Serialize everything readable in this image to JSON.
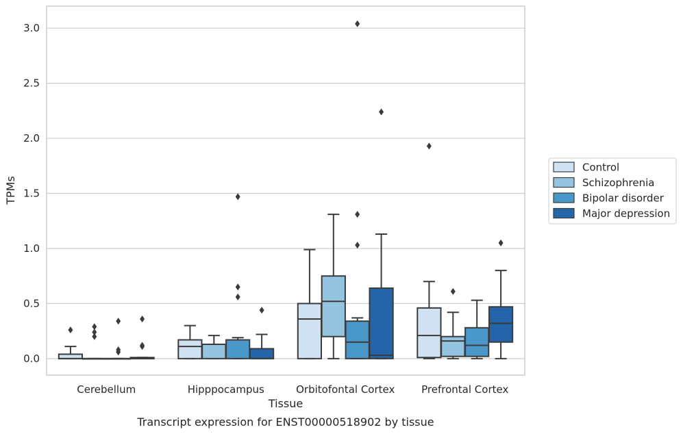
{
  "chart_data": {
    "type": "box",
    "title": "",
    "caption": "Transcript expression for ENST00000518902 by tissue",
    "xlabel": "Tissue",
    "ylabel": "TPMs",
    "ylim": [
      -0.15,
      3.2
    ],
    "yticks": [
      0.0,
      0.5,
      1.0,
      1.5,
      2.0,
      2.5,
      3.0
    ],
    "ytick_labels": [
      "0.0",
      "0.5",
      "1.0",
      "1.5",
      "2.0",
      "2.5",
      "3.0"
    ],
    "grid": "horizontal",
    "legend_position": "right",
    "categories": [
      "Cerebellum",
      "Hipppocampus",
      "Orbitofontal Cortex",
      "Prefrontal Cortex"
    ],
    "series": [
      {
        "name": "Control",
        "color": "#d0e1f2",
        "boxes": [
          {
            "whislo": 0.0,
            "q1": 0.0,
            "med": 0.0,
            "q3": 0.04,
            "whishi": 0.11,
            "fliers": [
              0.26
            ]
          },
          {
            "whislo": 0.0,
            "q1": 0.0,
            "med": 0.11,
            "q3": 0.17,
            "whishi": 0.3,
            "fliers": []
          },
          {
            "whislo": 0.0,
            "q1": 0.0,
            "med": 0.36,
            "q3": 0.5,
            "whishi": 0.99,
            "fliers": []
          },
          {
            "whislo": 0.0,
            "q1": 0.01,
            "med": 0.21,
            "q3": 0.46,
            "whishi": 0.7,
            "fliers": [
              1.93
            ]
          }
        ]
      },
      {
        "name": "Schizophrenia",
        "color": "#94c4df",
        "boxes": [
          {
            "whislo": 0.0,
            "q1": 0.0,
            "med": 0.0,
            "q3": 0.0,
            "whishi": 0.0,
            "fliers": [
              0.2,
              0.24,
              0.29
            ]
          },
          {
            "whislo": 0.0,
            "q1": 0.0,
            "med": 0.13,
            "q3": 0.13,
            "whishi": 0.21,
            "fliers": []
          },
          {
            "whislo": 0.0,
            "q1": 0.2,
            "med": 0.52,
            "q3": 0.75,
            "whishi": 1.31,
            "fliers": []
          },
          {
            "whislo": 0.0,
            "q1": 0.02,
            "med": 0.16,
            "q3": 0.2,
            "whishi": 0.42,
            "fliers": [
              0.61
            ]
          }
        ]
      },
      {
        "name": "Bipolar disorder",
        "color": "#4a98c9",
        "boxes": [
          {
            "whislo": 0.0,
            "q1": 0.0,
            "med": 0.0,
            "q3": 0.0,
            "whishi": 0.0,
            "fliers": [
              0.06,
              0.08,
              0.34
            ]
          },
          {
            "whislo": 0.0,
            "q1": 0.0,
            "med": 0.17,
            "q3": 0.17,
            "whishi": 0.19,
            "fliers": [
              0.56,
              0.65,
              1.47
            ]
          },
          {
            "whislo": 0.0,
            "q1": 0.0,
            "med": 0.15,
            "q3": 0.34,
            "whishi": 0.37,
            "fliers": [
              1.03,
              1.31,
              3.04
            ]
          },
          {
            "whislo": 0.0,
            "q1": 0.02,
            "med": 0.12,
            "q3": 0.28,
            "whishi": 0.53,
            "fliers": []
          }
        ]
      },
      {
        "name": "Major depression",
        "color": "#2464a8",
        "boxes": [
          {
            "whislo": 0.0,
            "q1": 0.0,
            "med": 0.0,
            "q3": 0.01,
            "whishi": 0.01,
            "fliers": [
              0.11,
              0.12,
              0.36
            ]
          },
          {
            "whislo": 0.0,
            "q1": 0.0,
            "med": 0.0,
            "q3": 0.09,
            "whishi": 0.22,
            "fliers": [
              0.44
            ]
          },
          {
            "whislo": 0.0,
            "q1": 0.0,
            "med": 0.03,
            "q3": 0.64,
            "whishi": 1.13,
            "fliers": [
              2.24
            ]
          },
          {
            "whislo": 0.0,
            "q1": 0.15,
            "med": 0.32,
            "q3": 0.47,
            "whishi": 0.8,
            "fliers": [
              1.05
            ]
          }
        ]
      }
    ]
  }
}
